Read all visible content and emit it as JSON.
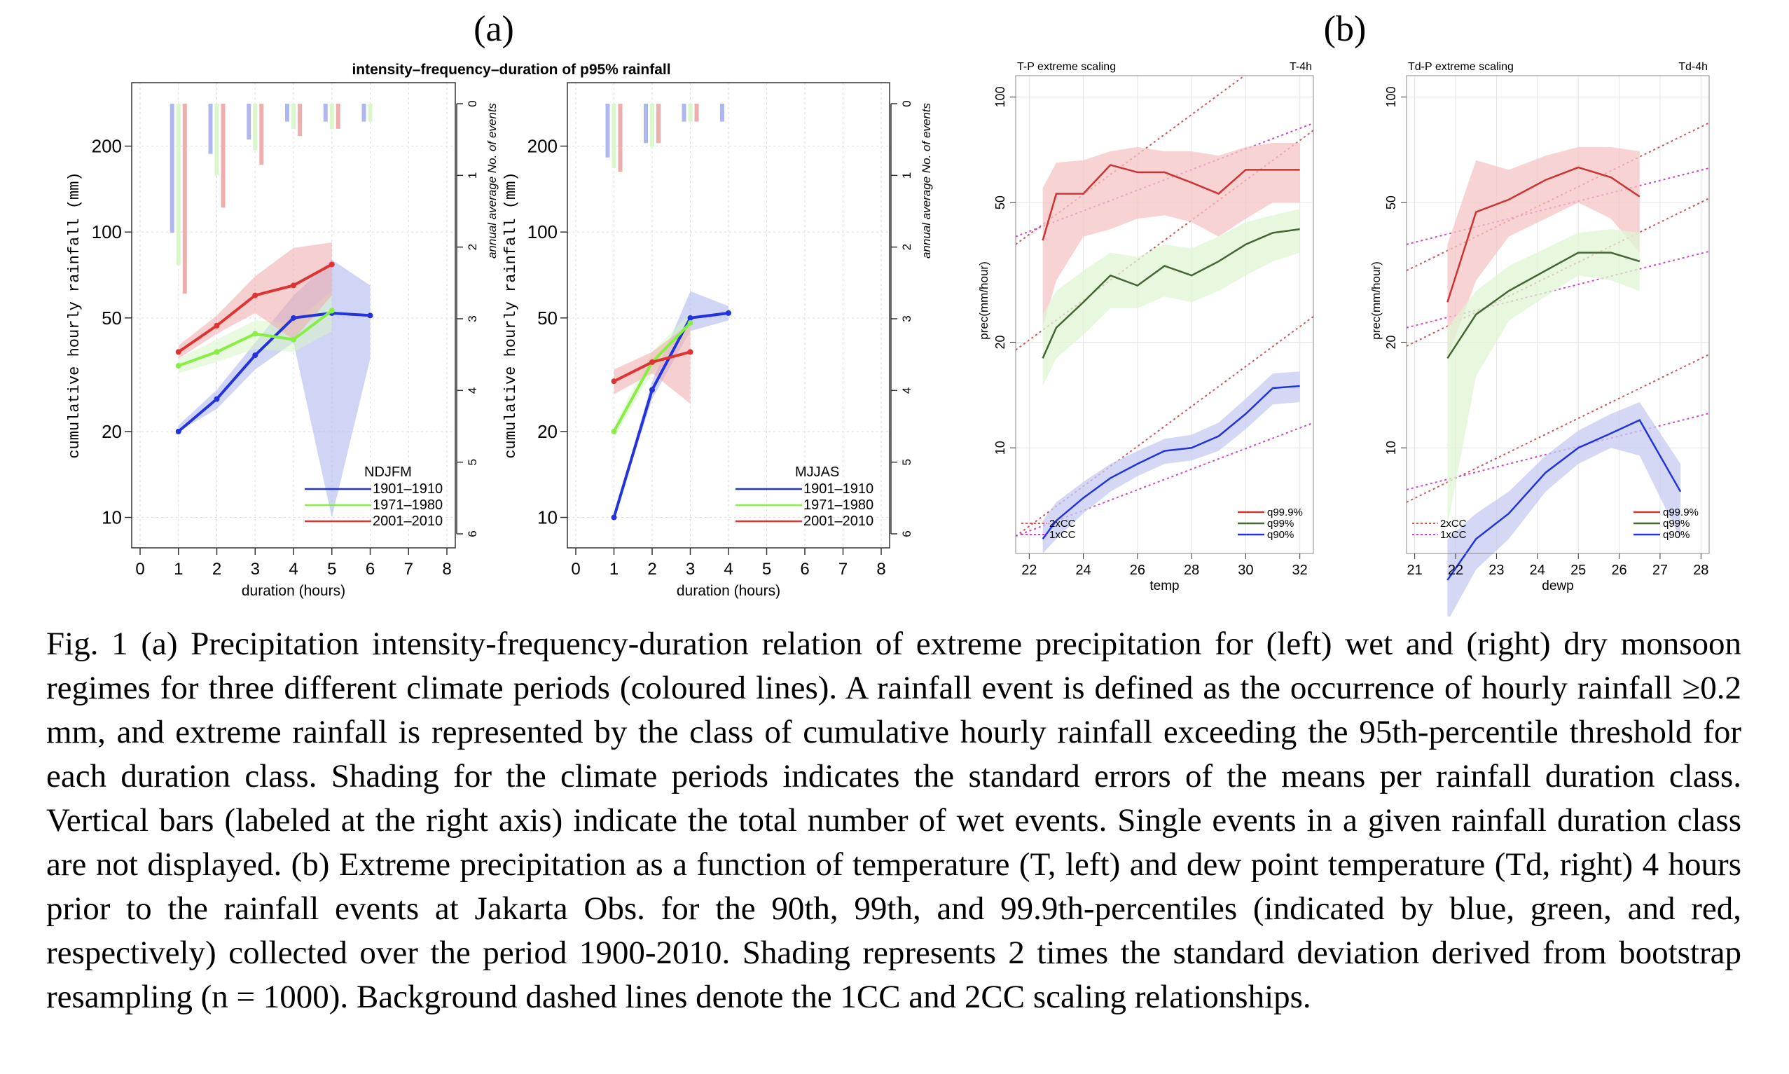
{
  "panel_labels": {
    "a": "(a)",
    "b": "(b)"
  },
  "chart_data": [
    {
      "id": "ndjfm",
      "type": "line",
      "title": "intensity–frequency–duration of p95% rainfall",
      "xlabel": "duration (hours)",
      "ylabel": "cumulative hourly rainfall (mm)",
      "y2label": "annual average No. of events",
      "yscale": "log",
      "ylim": [
        8,
        330
      ],
      "xlim": [
        0,
        8
      ],
      "xticks": [
        0,
        1,
        2,
        3,
        4,
        5,
        6,
        7,
        8
      ],
      "yticks": [
        10,
        20,
        50,
        100,
        200
      ],
      "y2ticks": [
        0,
        1,
        2,
        3,
        4,
        5,
        6
      ],
      "y2lim": [
        0,
        6
      ],
      "legend_title": "NDJFM",
      "legend_position": "bottom-right",
      "series": [
        {
          "name": "1901–1910",
          "color": "#2233dd",
          "shade": "#aab3ee",
          "x": [
            1,
            2,
            3,
            4,
            5,
            6
          ],
          "y": [
            20,
            26,
            37,
            50,
            52,
            51
          ],
          "band_low": [
            20,
            24,
            33,
            41,
            10,
            36
          ],
          "band_high": [
            21,
            28,
            41,
            60,
            80,
            65
          ],
          "bars": [
            1.8,
            0.7,
            0.5,
            0.25,
            0.25,
            0.25
          ]
        },
        {
          "name": "1971–1980",
          "color": "#88ee44",
          "shade": "#d8f5c8",
          "x": [
            1,
            2,
            3,
            4,
            5
          ],
          "y": [
            34,
            38,
            44,
            42,
            53
          ],
          "band_low": [
            32,
            35,
            39,
            38,
            45
          ],
          "band_high": [
            36,
            42,
            49,
            48,
            62
          ],
          "bars": [
            2.25,
            1.0,
            0.65,
            0.35,
            0.35,
            0.25
          ]
        },
        {
          "name": "2001–2010",
          "color": "#dd3333",
          "shade": "#eeaaaa",
          "x": [
            1,
            2,
            3,
            4,
            5
          ],
          "y": [
            38,
            47,
            60,
            65,
            77
          ],
          "band_low": [
            36,
            44,
            52,
            42,
            60
          ],
          "band_high": [
            40,
            51,
            70,
            88,
            92
          ],
          "bars": [
            2.65,
            1.45,
            0.85,
            0.45,
            0.35,
            0
          ]
        }
      ]
    },
    {
      "id": "mjjas",
      "type": "line",
      "xlabel": "duration (hours)",
      "ylabel": "cumulative hourly rainfall (mm)",
      "y2label": "annual average No. of events",
      "yscale": "log",
      "ylim": [
        8,
        330
      ],
      "xlim": [
        0,
        8
      ],
      "xticks": [
        0,
        1,
        2,
        3,
        4,
        5,
        6,
        7,
        8
      ],
      "yticks": [
        10,
        20,
        50,
        100,
        200
      ],
      "y2ticks": [
        0,
        1,
        2,
        3,
        4,
        5,
        6
      ],
      "y2lim": [
        0,
        6
      ],
      "legend_title": "MJJAS",
      "legend_position": "bottom-right",
      "series": [
        {
          "name": "1901–1910",
          "color": "#2233dd",
          "shade": "#aab3ee",
          "x": [
            1,
            2,
            3,
            4
          ],
          "y": [
            10,
            28,
            50,
            52
          ],
          "band_low": [
            10,
            26,
            45,
            49
          ],
          "band_high": [
            10,
            30,
            62,
            55
          ],
          "bars": [
            0.75,
            0.55,
            0.25,
            0.25
          ]
        },
        {
          "name": "1971–1980",
          "color": "#88ee44",
          "shade": "#d8f5c8",
          "x": [
            1,
            2,
            3
          ],
          "y": [
            20,
            35,
            48
          ],
          "band_low": [
            19,
            32,
            44
          ],
          "band_high": [
            21,
            38,
            52
          ],
          "bars": [
            0.9,
            0.6,
            0.25
          ]
        },
        {
          "name": "2001–2010",
          "color": "#dd3333",
          "shade": "#eeaaaa",
          "x": [
            1,
            2,
            3
          ],
          "y": [
            30,
            35,
            38
          ],
          "band_low": [
            27,
            32,
            25
          ],
          "band_high": [
            33,
            38,
            48
          ],
          "bars": [
            0.95,
            0.55,
            0.25
          ]
        }
      ]
    },
    {
      "id": "tp",
      "type": "line",
      "title": "T-P extreme scaling",
      "title_right": "T-4h",
      "xlabel": "temp",
      "ylabel": "prec(mm/hour)",
      "yscale": "log",
      "xlim": [
        21.5,
        32.5
      ],
      "ylim": [
        5,
        115
      ],
      "xticks": [
        22,
        24,
        26,
        28,
        30,
        32
      ],
      "yticks": [
        10,
        20,
        50,
        100
      ],
      "series": [
        {
          "name": "q99.9%",
          "color": "#cc3333",
          "shade": "#f4c4c4",
          "x": [
            22.5,
            23,
            24,
            25,
            26,
            27,
            28,
            29,
            30,
            31,
            32
          ],
          "y": [
            39,
            53,
            53,
            64,
            61,
            61,
            57,
            53,
            62,
            62,
            62
          ],
          "band_low": [
            22,
            30,
            40,
            42,
            45,
            46,
            44,
            40,
            45,
            50,
            50
          ],
          "band_high": [
            55,
            65,
            66,
            70,
            72,
            70,
            70,
            68,
            72,
            74,
            74
          ]
        },
        {
          "name": "q99%",
          "color": "#446633",
          "shade": "#dff5d4",
          "x": [
            22.5,
            23,
            24,
            25,
            26,
            27,
            28,
            29,
            30,
            31,
            32
          ],
          "y": [
            18,
            22,
            26,
            31,
            29,
            33,
            31,
            34,
            38,
            41,
            42
          ],
          "band_low": [
            15,
            18,
            21,
            25,
            25,
            27,
            26,
            28,
            31,
            34,
            36
          ],
          "band_high": [
            24,
            28,
            32,
            36,
            35,
            38,
            37,
            40,
            44,
            46,
            48
          ]
        },
        {
          "name": "q90%",
          "color": "#2233dd",
          "shade": "#c6cbf2",
          "x": [
            22.5,
            23,
            24,
            25,
            26,
            27,
            28,
            29,
            30,
            31,
            32
          ],
          "y": [
            5.5,
            6.2,
            7.2,
            8.2,
            9.0,
            9.8,
            10.0,
            10.8,
            12.5,
            14.8,
            15.0
          ],
          "band_low": [
            5.0,
            5.5,
            6.5,
            7.5,
            8.3,
            9.0,
            9.2,
            9.8,
            11.3,
            13.3,
            13.5
          ],
          "band_high": [
            6.2,
            7.0,
            8.0,
            9.0,
            9.8,
            10.6,
            10.9,
            11.8,
            13.8,
            16.3,
            16.5
          ]
        }
      ],
      "reference_lines": [
        {
          "name": "2xCC",
          "color": "#cc5555",
          "style": "dotted"
        },
        {
          "name": "1xCC",
          "color": "#cc44cc",
          "style": "dotted"
        }
      ]
    },
    {
      "id": "tdp",
      "type": "line",
      "title": "Td-P extreme scaling",
      "title_right": "Td-4h",
      "xlabel": "dewp",
      "ylabel": "prec(mm/hour)",
      "yscale": "log",
      "xlim": [
        20.8,
        28.2
      ],
      "ylim": [
        5,
        115
      ],
      "xticks": [
        21,
        22,
        23,
        24,
        25,
        26,
        27,
        28
      ],
      "yticks": [
        10,
        20,
        50,
        100
      ],
      "series": [
        {
          "name": "q99.9%",
          "color": "#cc3333",
          "shade": "#f4c4c4",
          "x": [
            21.8,
            22.5,
            23.3,
            24.2,
            25,
            25.8,
            26.5
          ],
          "y": [
            26,
            47,
            51,
            58,
            63,
            59,
            52
          ],
          "band_low": [
            18,
            30,
            40,
            45,
            50,
            45,
            36
          ],
          "band_high": [
            38,
            66,
            62,
            68,
            72,
            72,
            70
          ]
        },
        {
          "name": "q99%",
          "color": "#446633",
          "shade": "#dff5d4",
          "x": [
            21.8,
            22.5,
            23.3,
            24.2,
            25,
            25.8,
            26.5
          ],
          "y": [
            18,
            24,
            28,
            32,
            36,
            36,
            34
          ],
          "band_low": [
            6,
            16,
            23,
            27,
            31,
            30,
            28
          ],
          "band_high": [
            22,
            28,
            33,
            37,
            41,
            42,
            41
          ]
        },
        {
          "name": "q90%",
          "color": "#2233dd",
          "shade": "#c6cbf2",
          "x": [
            21.8,
            22.5,
            23.3,
            24.2,
            25,
            25.8,
            26.5,
            27.5
          ],
          "y": [
            4.2,
            5.5,
            6.5,
            8.5,
            10,
            11,
            12,
            7.5
          ],
          "band_low": [
            3.2,
            4.5,
            5.5,
            7.5,
            9,
            10,
            9.5,
            5.5
          ],
          "band_high": [
            5.5,
            6.5,
            7.5,
            9.5,
            11.2,
            12.5,
            13.5,
            9.0
          ]
        }
      ],
      "reference_lines": [
        {
          "name": "2xCC",
          "color": "#cc5555",
          "style": "dotted"
        },
        {
          "name": "1xCC",
          "color": "#cc44cc",
          "style": "dotted"
        }
      ]
    }
  ],
  "caption": "Fig. 1 (a) Precipitation intensity-frequency-duration relation of extreme precipitation for (left) wet and (right) dry monsoon regimes for three different climate periods (coloured lines). A rainfall event is defined as the occurrence of hourly rainfall ≥0.2 mm, and extreme rainfall is represented by the class of cumulative hourly rainfall exceeding the 95th-percentile threshold for each duration class. Shading for the climate periods indicates the standard errors of the means per rainfall duration class. Vertical bars (labeled at the right axis) indicate the total number of wet events. Single events in a given rainfall duration class are not displayed. (b) Extreme precipitation as a function of temperature (T, left) and dew point temperature (Td, right) 4 hours prior to the rainfall events at Jakarta Obs. for the 90th, 99th, and 99.9th-percentiles (indicated by blue, green, and red, respectively) collected over the period 1900-2010. Shading represents 2 times the standard deviation derived from bootstrap resampling (n = 1000). Background dashed lines denote the 1CC and 2CC scaling relationships."
}
